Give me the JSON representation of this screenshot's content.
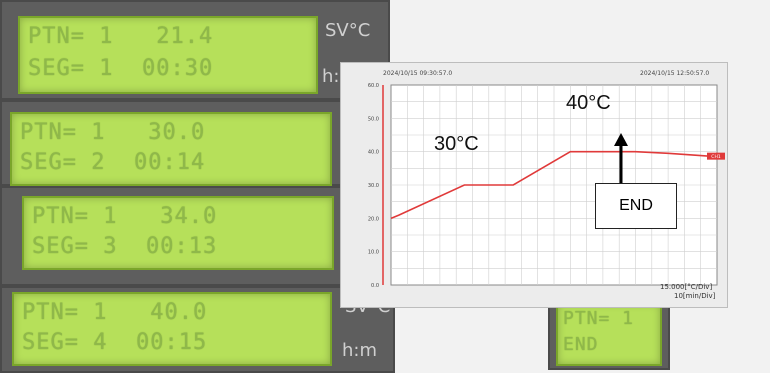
{
  "lcd_panels": [
    {
      "line1": "PTN= 1   21.4",
      "line2": "SEG= 1  00:30",
      "unit_top": "SV°C",
      "unit_bottom": "h:m"
    },
    {
      "line1": "PTN= 1   30.0",
      "line2": "SEG= 2  00:14",
      "unit_top": "",
      "unit_bottom": ""
    },
    {
      "line1": "PTN= 1   34.0",
      "line2": "SEG= 3  00:13",
      "unit_top": "",
      "unit_bottom": ""
    },
    {
      "line1": "PTN= 1   40.0",
      "line2": "SEG= 4  00:15",
      "unit_top": "SV°C",
      "unit_bottom": "h:m"
    }
  ],
  "end_panel": {
    "line1": "PTN= 1",
    "line2": "END"
  },
  "chart": {
    "start_time": "2024/10/15 09:30:57.0",
    "end_time": "2024/10/15 12:50:57.0",
    "scale_line1": "15.000[°C/Div]",
    "scale_line2": "10[min/Div]",
    "channel_tag": "CH1",
    "y_ticks": [
      "60.0",
      "50.0",
      "40.0",
      "30.0",
      "20.0",
      "10.0",
      "0.0"
    ],
    "annotations": {
      "label_30": "30°C",
      "label_40": "40°C",
      "end_label": "END"
    }
  },
  "chart_data": {
    "type": "line",
    "title": "",
    "xlabel": "",
    "ylabel": "",
    "ylim": [
      0,
      60
    ],
    "x_unit": "min",
    "series": [
      {
        "x": [
          0,
          5,
          45,
          75,
          110,
          150,
          170,
          200
        ],
        "y": [
          20,
          21,
          30,
          30,
          40,
          40,
          39.5,
          38.5
        ]
      }
    ],
    "grid": true,
    "line_color": "#e03a3a"
  },
  "colors": {
    "lcd_bg": "#b6e05a",
    "panel_bg": "#5e5e5e",
    "trace": "#e03a3a"
  }
}
